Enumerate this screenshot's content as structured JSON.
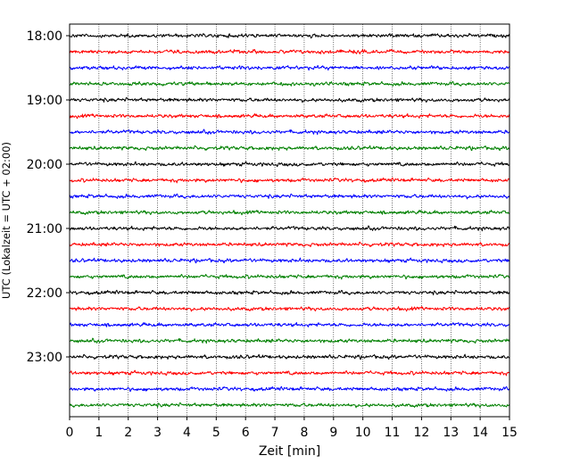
{
  "chart_data": {
    "type": "line",
    "title": "",
    "xlabel": "Zeit  [min]",
    "ylabel": "UTC (Lokalzeit = UTC + 02:00)",
    "xlim": [
      0,
      15
    ],
    "x_ticks": [
      "0",
      "1",
      "2",
      "3",
      "4",
      "5",
      "6",
      "7",
      "8",
      "9",
      "10",
      "11",
      "12",
      "13",
      "14",
      "15"
    ],
    "y_ticks": [
      "18:00",
      "19:00",
      "20:00",
      "21:00",
      "22:00",
      "23:00"
    ],
    "grid_x": true,
    "trace_interval_minutes": 15,
    "trace_colors": [
      "#000000",
      "#ff0000",
      "#0000ff",
      "#008000"
    ],
    "traces": [
      {
        "start": "18:00"
      },
      {
        "start": "18:15"
      },
      {
        "start": "18:30"
      },
      {
        "start": "18:45"
      },
      {
        "start": "19:00"
      },
      {
        "start": "19:15"
      },
      {
        "start": "19:30"
      },
      {
        "start": "19:45"
      },
      {
        "start": "20:00"
      },
      {
        "start": "20:15"
      },
      {
        "start": "20:30"
      },
      {
        "start": "20:45"
      },
      {
        "start": "21:00"
      },
      {
        "start": "21:15"
      },
      {
        "start": "21:30"
      },
      {
        "start": "21:45"
      },
      {
        "start": "22:00"
      },
      {
        "start": "22:15"
      },
      {
        "start": "22:30"
      },
      {
        "start": "22:45"
      },
      {
        "start": "23:00"
      },
      {
        "start": "23:15"
      },
      {
        "start": "23:30"
      },
      {
        "start": "23:45"
      }
    ]
  }
}
